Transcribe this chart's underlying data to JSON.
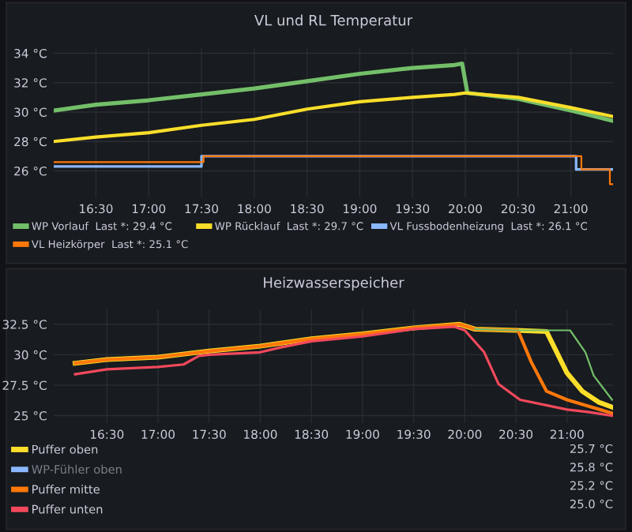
{
  "chart_data": [
    {
      "type": "line",
      "title": "VL und RL Temperatur",
      "legend": "bottom",
      "grid": true,
      "xlim": [
        16.1,
        21.4
      ],
      "ylim": [
        24.2,
        34.4
      ],
      "xticks": [
        {
          "value": 16.5,
          "label": "16:30"
        },
        {
          "value": 17,
          "label": "17:00"
        },
        {
          "value": 17.5,
          "label": "17:30"
        },
        {
          "value": 18,
          "label": "18:00"
        },
        {
          "value": 18.5,
          "label": "18:30"
        },
        {
          "value": 19,
          "label": "19:00"
        },
        {
          "value": 19.5,
          "label": "19:30"
        },
        {
          "value": 20,
          "label": "20:00"
        },
        {
          "value": 20.5,
          "label": "20:30"
        },
        {
          "value": 21,
          "label": "21:00"
        }
      ],
      "yticks": [
        {
          "value": 26,
          "label": "26 °C"
        },
        {
          "value": 28,
          "label": "28 °C"
        },
        {
          "value": 30,
          "label": "30 °C"
        },
        {
          "value": 32,
          "label": "32 °C"
        },
        {
          "value": 34,
          "label": "34 °C"
        }
      ],
      "series": [
        {
          "name": "WP Vorlauf  Last *: 29.4 °C",
          "color": "#73bf69",
          "x": [
            16.1,
            16.5,
            17,
            17.5,
            18,
            18.5,
            19,
            19.5,
            19.9,
            19.97,
            20.02,
            20.5,
            21,
            21.4
          ],
          "values": [
            30.1,
            30.5,
            30.8,
            31.2,
            31.6,
            32.1,
            32.6,
            33.0,
            33.2,
            33.3,
            31.3,
            30.9,
            30.1,
            29.4
          ]
        },
        {
          "name": "WP Rücklauf  Last *: 29.7 °C",
          "color": "#fade2a",
          "x": [
            16.1,
            16.5,
            17,
            17.5,
            18,
            18.5,
            19,
            19.5,
            19.9,
            20.0,
            20.5,
            21,
            21.4
          ],
          "values": [
            28.0,
            28.3,
            28.6,
            29.1,
            29.5,
            30.2,
            30.7,
            31.0,
            31.2,
            31.3,
            31.0,
            30.3,
            29.7
          ]
        },
        {
          "name": "VL Fussbodenheizung  Last *: 26.1 °C",
          "color": "#8ab8ff",
          "type": "step",
          "x": [
            16.1,
            17.5,
            21.05,
            21.4
          ],
          "values": [
            26.3,
            27.0,
            26.1,
            26.1
          ]
        },
        {
          "name": "VL Heizkörper  Last *: 25.1 °C",
          "color": "#ff780a",
          "type": "step",
          "x": [
            16.1,
            17.52,
            21.1,
            21.37,
            21.4
          ],
          "values": [
            26.6,
            27.0,
            26.1,
            25.1,
            25.1
          ]
        }
      ]
    },
    {
      "type": "line",
      "title": "Heizwasserspeicher",
      "legend": "bottom",
      "grid": true,
      "xlim": [
        15.98,
        21.45
      ],
      "ylim": [
        24.4,
        33.7
      ],
      "xticks": [
        {
          "value": 16.5,
          "label": "16:30"
        },
        {
          "value": 17,
          "label": "17:00"
        },
        {
          "value": 17.5,
          "label": "17:30"
        },
        {
          "value": 18,
          "label": "18:00"
        },
        {
          "value": 18.5,
          "label": "18:30"
        },
        {
          "value": 19,
          "label": "19:00"
        },
        {
          "value": 19.5,
          "label": "19:30"
        },
        {
          "value": 20,
          "label": "20:00"
        },
        {
          "value": 20.5,
          "label": "20:30"
        },
        {
          "value": 21,
          "label": "21:00"
        }
      ],
      "yticks": [
        {
          "value": 25,
          "label": "25 °C"
        },
        {
          "value": 27.5,
          "label": "27.5 °C"
        },
        {
          "value": 30,
          "label": "30 °C"
        },
        {
          "value": 32.5,
          "label": "32.5 °C"
        }
      ],
      "annotations": [
        "25.7 °C",
        "25.8 °C",
        "25.2 °C",
        "25.0 °C"
      ],
      "series": [
        {
          "name": "Puffer oben",
          "color": "#fade2a",
          "x": [
            16.19,
            16.5,
            17,
            17.5,
            18,
            18.5,
            19,
            19.5,
            19.95,
            20.1,
            20.5,
            20.8,
            21.0,
            21.15,
            21.31,
            21.44
          ],
          "values": [
            29.3,
            29.6,
            29.8,
            30.3,
            30.7,
            31.3,
            31.7,
            32.2,
            32.5,
            32.1,
            32.0,
            31.9,
            28.5,
            27.0,
            26.1,
            25.7
          ]
        },
        {
          "name": "WP-Fühler oben",
          "color": "#8ab8ff"
        },
        {
          "name": "Puffer mitte",
          "color": "#ff780a",
          "x": [
            16.19,
            16.5,
            17,
            17.5,
            18,
            18.5,
            19,
            19.5,
            19.95,
            20.1,
            20.52,
            20.65,
            20.8,
            21.0,
            21.2,
            21.44
          ],
          "values": [
            29.3,
            29.6,
            29.8,
            30.3,
            30.7,
            31.3,
            31.7,
            32.2,
            32.5,
            32.1,
            32.0,
            29.4,
            27.0,
            26.3,
            25.8,
            25.2
          ]
        },
        {
          "name": "Puffer unten",
          "color": "#f2495c",
          "x": [
            16.19,
            16.5,
            17,
            17.25,
            17.4,
            17.5,
            18,
            18.2,
            18.5,
            19,
            19.5,
            19.9,
            20.0,
            20.19,
            20.33,
            20.54,
            21.0,
            21.2,
            21.44
          ],
          "values": [
            28.4,
            28.8,
            29.0,
            29.2,
            29.9,
            30.0,
            30.2,
            30.6,
            31.1,
            31.5,
            32.1,
            32.3,
            32.0,
            30.2,
            27.6,
            26.3,
            25.5,
            25.3,
            25.0
          ]
        },
        {
          "color": "#73bf69",
          "x": [
            20.1,
            20.5,
            21.03,
            21.18,
            21.26,
            21.44
          ],
          "values": [
            32.1,
            32.0,
            32.0,
            30.2,
            28.3,
            26.3
          ]
        }
      ]
    }
  ]
}
